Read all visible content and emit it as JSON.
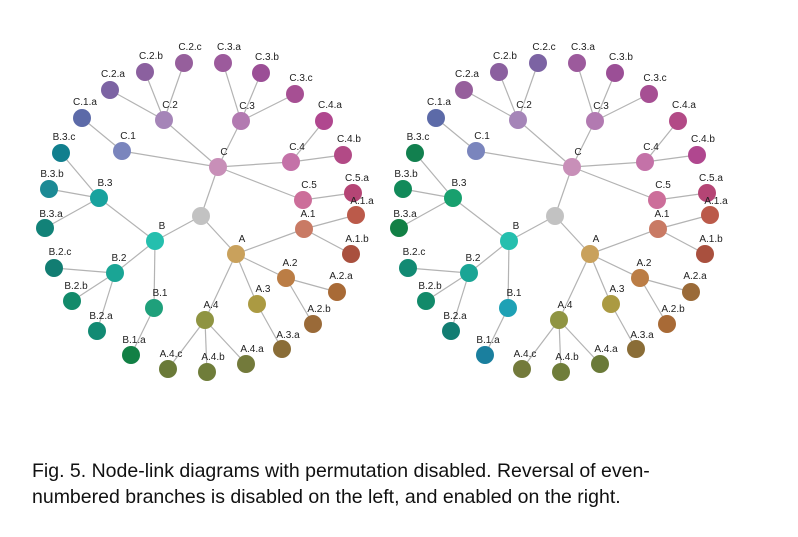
{
  "caption": {
    "line1": "Fig. 5. Node-link diagrams with permutation disabled. Reversal of even-",
    "line2": "numbered branches is disabled on the left, and enabled on the right."
  },
  "diagrams": [
    {
      "id": "left",
      "nodes": [
        {
          "id": "root",
          "label": "",
          "color": "#c2c2c2"
        },
        {
          "id": "A",
          "label": "A",
          "color": "#c9a15c"
        },
        {
          "id": "A.1",
          "label": "A.1",
          "color": "#c97a64"
        },
        {
          "id": "A.1.a",
          "label": "A.1.a",
          "color": "#bb5a4a"
        },
        {
          "id": "A.1.b",
          "label": "A.1.b",
          "color": "#a9503e"
        },
        {
          "id": "A.2",
          "label": "A.2",
          "color": "#bb7d45"
        },
        {
          "id": "A.2.a",
          "label": "A.2.a",
          "color": "#a86a36"
        },
        {
          "id": "A.2.b",
          "label": "A.2.b",
          "color": "#9a6a38"
        },
        {
          "id": "A.3",
          "label": "A.3",
          "color": "#ab9a42"
        },
        {
          "id": "A.3.a",
          "label": "A.3.a",
          "color": "#8a6d37"
        },
        {
          "id": "A.4",
          "label": "A.4",
          "color": "#8f9442"
        },
        {
          "id": "A.4.a",
          "label": "A.4.a",
          "color": "#737a3b"
        },
        {
          "id": "A.4.b",
          "label": "A.4.b",
          "color": "#6f7d3a"
        },
        {
          "id": "A.4.c",
          "label": "A.4.c",
          "color": "#6a7a38"
        },
        {
          "id": "B",
          "label": "B",
          "color": "#25bfae"
        },
        {
          "id": "B.1",
          "label": "B.1",
          "color": "#1fa07b"
        },
        {
          "id": "B.1.a",
          "label": "B.1.a",
          "color": "#128045"
        },
        {
          "id": "B.2",
          "label": "B.2",
          "color": "#1aa595"
        },
        {
          "id": "B.2.a",
          "label": "B.2.a",
          "color": "#128a73"
        },
        {
          "id": "B.2.b",
          "label": "B.2.b",
          "color": "#128a6a"
        },
        {
          "id": "B.2.c",
          "label": "B.2.c",
          "color": "#127d72"
        },
        {
          "id": "B.3",
          "label": "B.3",
          "color": "#18a29e"
        },
        {
          "id": "B.3.a",
          "label": "B.3.a",
          "color": "#128278"
        },
        {
          "id": "B.3.b",
          "label": "B.3.b",
          "color": "#1c8a95"
        },
        {
          "id": "B.3.c",
          "label": "B.3.c",
          "color": "#117f8e"
        },
        {
          "id": "C",
          "label": "C",
          "color": "#c88fb8"
        },
        {
          "id": "C.1",
          "label": "C.1",
          "color": "#7a85bd"
        },
        {
          "id": "C.1.a",
          "label": "C.1.a",
          "color": "#5c6aa8"
        },
        {
          "id": "C.2",
          "label": "C.2",
          "color": "#a585b8"
        },
        {
          "id": "C.2.a",
          "label": "C.2.a",
          "color": "#7c63a3"
        },
        {
          "id": "C.2.b",
          "label": "C.2.b",
          "color": "#8b609f"
        },
        {
          "id": "C.2.c",
          "label": "C.2.c",
          "color": "#965f9c"
        },
        {
          "id": "C.3",
          "label": "C.3",
          "color": "#b27ab1"
        },
        {
          "id": "C.3.a",
          "label": "C.3.a",
          "color": "#9c5a9c"
        },
        {
          "id": "C.3.b",
          "label": "C.3.b",
          "color": "#9b4f96"
        },
        {
          "id": "C.3.c",
          "label": "C.3.c",
          "color": "#a64f93"
        },
        {
          "id": "C.4",
          "label": "C.4",
          "color": "#c472a8"
        },
        {
          "id": "C.4.a",
          "label": "C.4.a",
          "color": "#b0478f"
        },
        {
          "id": "C.4.b",
          "label": "C.4.b",
          "color": "#b24a86"
        },
        {
          "id": "C.5",
          "label": "C.5",
          "color": "#cc6e9a"
        },
        {
          "id": "C.5.a",
          "label": "C.5.a",
          "color": "#b54575"
        }
      ]
    },
    {
      "id": "right",
      "nodes": [
        {
          "id": "root",
          "label": "",
          "color": "#c2c2c2"
        },
        {
          "id": "A",
          "label": "A",
          "color": "#c9a15c"
        },
        {
          "id": "A.1",
          "label": "A.1",
          "color": "#c97a64"
        },
        {
          "id": "A.1.a",
          "label": "A.1.a",
          "color": "#bb5a4a"
        },
        {
          "id": "A.1.b",
          "label": "A.1.b",
          "color": "#a9503e"
        },
        {
          "id": "A.2",
          "label": "A.2",
          "color": "#bb7d45"
        },
        {
          "id": "A.2.a",
          "label": "A.2.a",
          "color": "#9a6a38"
        },
        {
          "id": "A.2.b",
          "label": "A.2.b",
          "color": "#a86a36"
        },
        {
          "id": "A.3",
          "label": "A.3",
          "color": "#ab9a42"
        },
        {
          "id": "A.3.a",
          "label": "A.3.a",
          "color": "#8a6d37"
        },
        {
          "id": "A.4",
          "label": "A.4",
          "color": "#8f9442"
        },
        {
          "id": "A.4.a",
          "label": "A.4.a",
          "color": "#6a7a38"
        },
        {
          "id": "A.4.b",
          "label": "A.4.b",
          "color": "#6f7d3a"
        },
        {
          "id": "A.4.c",
          "label": "A.4.c",
          "color": "#737a3b"
        },
        {
          "id": "B",
          "label": "B",
          "color": "#25bfae"
        },
        {
          "id": "B.1",
          "label": "B.1",
          "color": "#1ea1b5"
        },
        {
          "id": "B.1.a",
          "label": "B.1.a",
          "color": "#1a7f9e"
        },
        {
          "id": "B.2",
          "label": "B.2",
          "color": "#1aa595"
        },
        {
          "id": "B.2.a",
          "label": "B.2.a",
          "color": "#127d72"
        },
        {
          "id": "B.2.b",
          "label": "B.2.b",
          "color": "#128a6a"
        },
        {
          "id": "B.2.c",
          "label": "B.2.c",
          "color": "#128a73"
        },
        {
          "id": "B.3",
          "label": "B.3",
          "color": "#18a06e"
        },
        {
          "id": "B.3.a",
          "label": "B.3.a",
          "color": "#128045"
        },
        {
          "id": "B.3.b",
          "label": "B.3.b",
          "color": "#128a5a"
        },
        {
          "id": "B.3.c",
          "label": "B.3.c",
          "color": "#12804f"
        },
        {
          "id": "C",
          "label": "C",
          "color": "#c88fb8"
        },
        {
          "id": "C.1",
          "label": "C.1",
          "color": "#7a85bd"
        },
        {
          "id": "C.1.a",
          "label": "C.1.a",
          "color": "#5c6aa8"
        },
        {
          "id": "C.2",
          "label": "C.2",
          "color": "#a585b8"
        },
        {
          "id": "C.2.a",
          "label": "C.2.a",
          "color": "#965f9c"
        },
        {
          "id": "C.2.b",
          "label": "C.2.b",
          "color": "#8b609f"
        },
        {
          "id": "C.2.c",
          "label": "C.2.c",
          "color": "#7c63a3"
        },
        {
          "id": "C.3",
          "label": "C.3",
          "color": "#b27ab1"
        },
        {
          "id": "C.3.a",
          "label": "C.3.a",
          "color": "#9c5a9c"
        },
        {
          "id": "C.3.b",
          "label": "C.3.b",
          "color": "#9b4f96"
        },
        {
          "id": "C.3.c",
          "label": "C.3.c",
          "color": "#a64f93"
        },
        {
          "id": "C.4",
          "label": "C.4",
          "color": "#c472a8"
        },
        {
          "id": "C.4.a",
          "label": "C.4.a",
          "color": "#b24a86"
        },
        {
          "id": "C.4.b",
          "label": "C.4.b",
          "color": "#b0478f"
        },
        {
          "id": "C.5",
          "label": "C.5",
          "color": "#cc6e9a"
        },
        {
          "id": "C.5.a",
          "label": "C.5.a",
          "color": "#b54575"
        }
      ]
    }
  ]
}
